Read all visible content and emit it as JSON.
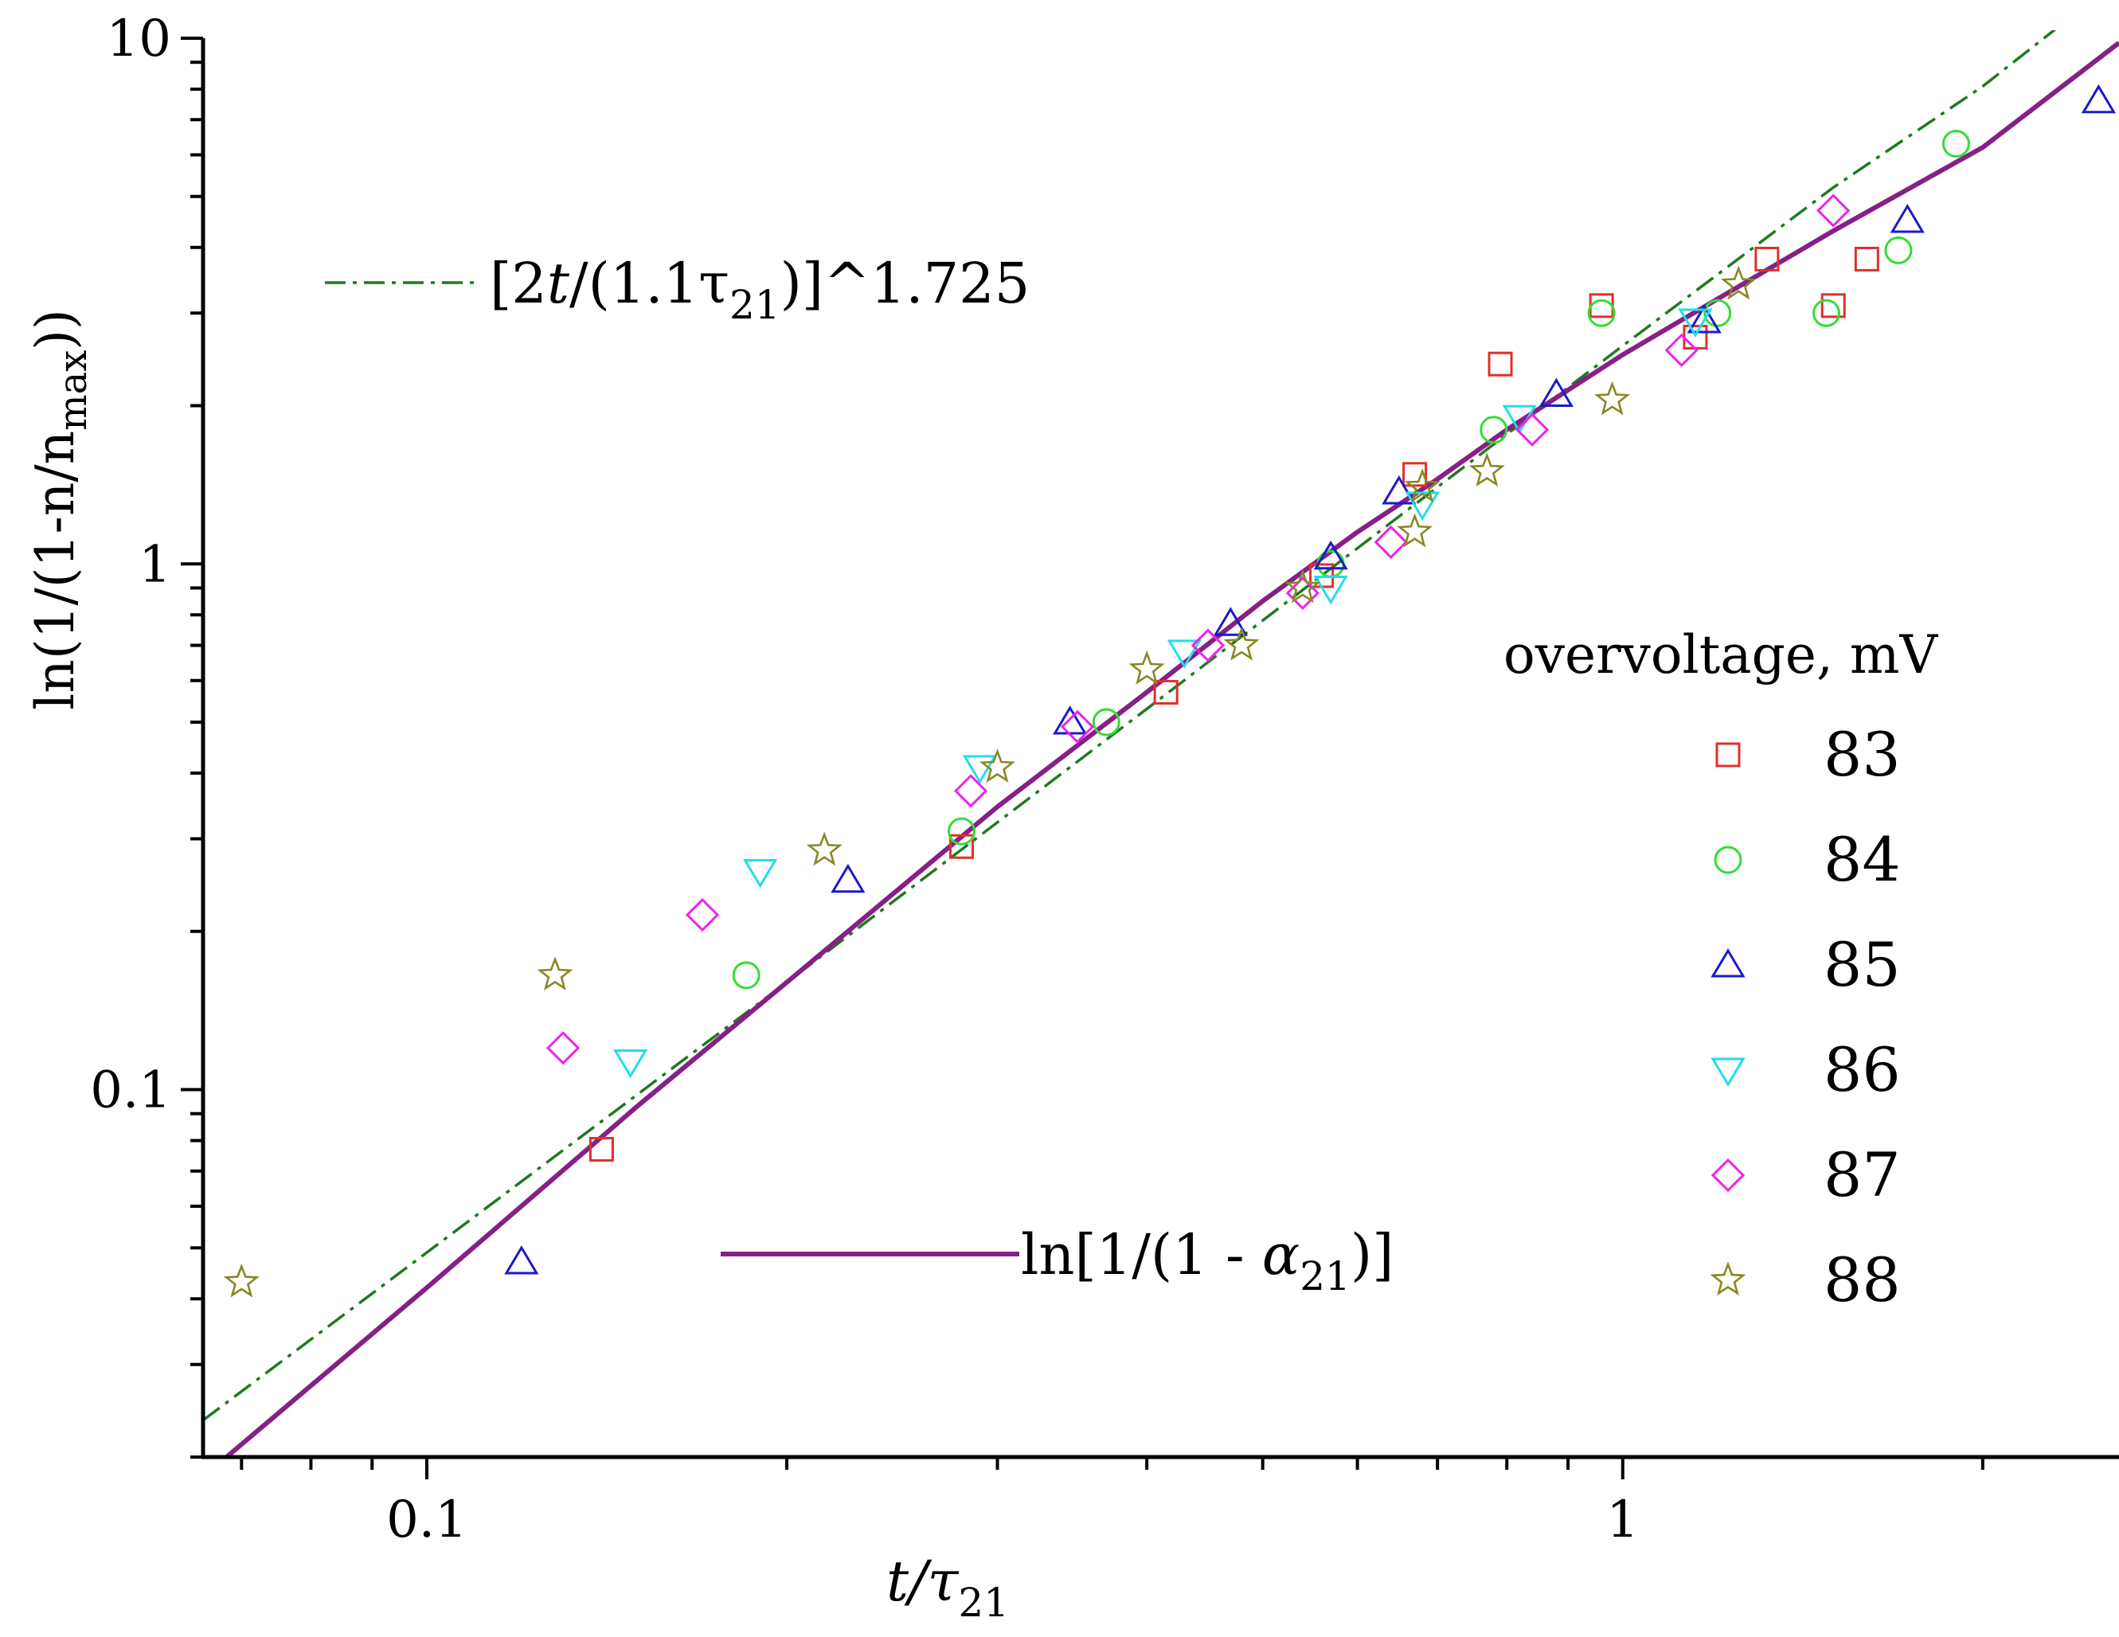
{
  "chart_data": {
    "type": "scatter",
    "xscale": "log",
    "yscale": "log",
    "xlim": [
      0.065,
      2.6
    ],
    "ylim": [
      0.02,
      10
    ],
    "xlabel": {
      "main": "t/τ",
      "sub": "21"
    },
    "ylabel": {
      "pre": "ln(1/(1-n/n",
      "sub": "max",
      "post": "))"
    },
    "x_ticks": [
      {
        "v": 0.1,
        "label": "0.1"
      },
      {
        "v": 1,
        "label": "1"
      }
    ],
    "y_ticks": [
      {
        "v": 0.1,
        "label": "0.1"
      },
      {
        "v": 1,
        "label": "1"
      },
      {
        "v": 10,
        "label": "10"
      }
    ],
    "legend": {
      "title": "overvoltage, mV",
      "position": "right"
    },
    "series": [
      {
        "name": "83",
        "marker": "square",
        "color": "#e0302a",
        "points": [
          [
            0.14,
            0.077
          ],
          [
            0.28,
            0.29
          ],
          [
            0.415,
            0.57
          ],
          [
            0.56,
            0.95
          ],
          [
            0.67,
            1.48
          ],
          [
            0.79,
            2.4
          ],
          [
            0.96,
            3.1
          ],
          [
            1.15,
            2.7
          ],
          [
            1.32,
            3.8
          ],
          [
            1.5,
            3.1
          ],
          [
            1.6,
            3.8
          ]
        ]
      },
      {
        "name": "84",
        "marker": "circle",
        "color": "#33dd33",
        "points": [
          [
            0.185,
            0.165
          ],
          [
            0.28,
            0.31
          ],
          [
            0.37,
            0.5
          ],
          [
            0.57,
            1.0
          ],
          [
            0.78,
            1.8
          ],
          [
            0.96,
            3.0
          ],
          [
            1.2,
            3.0
          ],
          [
            1.48,
            3.0
          ],
          [
            1.7,
            3.95
          ],
          [
            1.9,
            6.3
          ]
        ]
      },
      {
        "name": "85",
        "marker": "triangle-up",
        "color": "#1a1acc",
        "points": [
          [
            0.12,
            0.047
          ],
          [
            0.225,
            0.25
          ],
          [
            0.345,
            0.5
          ],
          [
            0.47,
            0.77
          ],
          [
            0.57,
            1.03
          ],
          [
            0.65,
            1.37
          ],
          [
            0.88,
            2.1
          ],
          [
            1.17,
            2.9
          ],
          [
            1.73,
            4.5
          ],
          [
            2.5,
            7.6
          ]
        ]
      },
      {
        "name": "86",
        "marker": "triangle-down",
        "color": "#22ddee",
        "points": [
          [
            0.148,
            0.113
          ],
          [
            0.19,
            0.26
          ],
          [
            0.29,
            0.41
          ],
          [
            0.43,
            0.68
          ],
          [
            0.57,
            0.9
          ],
          [
            0.68,
            1.3
          ],
          [
            0.82,
            1.9
          ],
          [
            1.15,
            2.9
          ]
        ]
      },
      {
        "name": "87",
        "marker": "diamond",
        "color": "#ee22ee",
        "points": [
          [
            0.13,
            0.12
          ],
          [
            0.17,
            0.215
          ],
          [
            0.285,
            0.37
          ],
          [
            0.35,
            0.49
          ],
          [
            0.45,
            0.7
          ],
          [
            0.54,
            0.88
          ],
          [
            0.64,
            1.1
          ],
          [
            0.84,
            1.8
          ],
          [
            1.12,
            2.55
          ],
          [
            1.5,
            4.7
          ]
        ]
      },
      {
        "name": "88",
        "marker": "star",
        "color": "#888822",
        "points": [
          [
            0.07,
            0.043
          ],
          [
            0.128,
            0.165
          ],
          [
            0.215,
            0.285
          ],
          [
            0.3,
            0.41
          ],
          [
            0.4,
            0.63
          ],
          [
            0.48,
            0.7
          ],
          [
            0.54,
            0.9
          ],
          [
            0.67,
            1.15
          ],
          [
            0.68,
            1.4
          ],
          [
            0.77,
            1.5
          ],
          [
            0.98,
            2.05
          ],
          [
            1.25,
            3.4
          ]
        ]
      }
    ],
    "curves": [
      {
        "name_parts": [
          [
            "[2",
            "n"
          ],
          [
            "t",
            "i"
          ],
          [
            "/(1.1",
            "n"
          ],
          [
            "τ",
            "n"
          ],
          [
            "21",
            "sub"
          ],
          [
            ")]^1.725",
            "n"
          ]
        ],
        "style": "dash-dot",
        "color": "#1f7a1f",
        "points": [
          [
            0.065,
            0.0235
          ],
          [
            0.1,
            0.049
          ],
          [
            0.2,
            0.16
          ],
          [
            0.4,
            0.53
          ],
          [
            0.7,
            1.4
          ],
          [
            1.0,
            2.6
          ],
          [
            1.5,
            5.2
          ],
          [
            2.0,
            8.1
          ],
          [
            2.3,
            10.4
          ]
        ]
      },
      {
        "name_parts": [
          [
            "ln[1/(1 - ",
            "n"
          ],
          [
            "α",
            "i"
          ],
          [
            "21",
            "sub"
          ],
          [
            ")]",
            "n"
          ]
        ],
        "style": "solid",
        "color": "#862086",
        "points": [
          [
            0.068,
            0.02
          ],
          [
            0.1,
            0.042
          ],
          [
            0.15,
            0.093
          ],
          [
            0.2,
            0.16
          ],
          [
            0.3,
            0.345
          ],
          [
            0.4,
            0.57
          ],
          [
            0.5,
            0.85
          ],
          [
            0.6,
            1.15
          ],
          [
            0.7,
            1.45
          ],
          [
            0.8,
            1.8
          ],
          [
            1.0,
            2.5
          ],
          [
            1.5,
            4.3
          ],
          [
            2.0,
            6.2
          ],
          [
            2.6,
            9.8
          ]
        ]
      }
    ]
  }
}
